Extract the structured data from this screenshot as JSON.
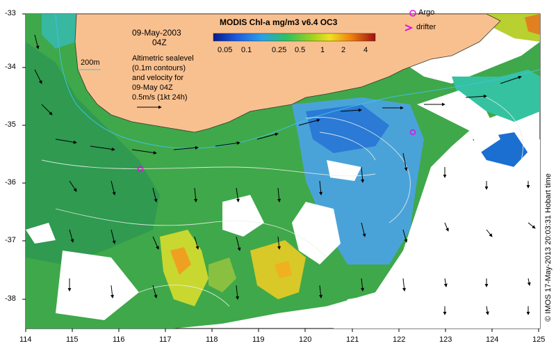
{
  "map": {
    "date": "09-May-2003",
    "time": "04Z",
    "isobath_label": "200m",
    "desc": [
      "Altimetric sealevel",
      "(0.1m contours)",
      "and velocity for",
      "09-May 04Z",
      "0.5m/s (1kt 24h)"
    ],
    "colorbar_title": "MODIS Chl-a mg/m3 v6.4 OC3",
    "colorbar_ticks": [
      "0.05",
      "0.1",
      "0.25",
      "0.5",
      "1",
      "2",
      "4"
    ],
    "legend": {
      "argo": "Argo",
      "drifter": "drifter"
    },
    "credit": "© IMOS 17-May-2013 20:03:31 Hobart time",
    "lon_ticks": [
      "114",
      "115",
      "116",
      "117",
      "118",
      "119",
      "120",
      "121",
      "122",
      "123",
      "124",
      "125"
    ],
    "lat_ticks": [
      "-33",
      "-34",
      "-35",
      "-36",
      "-37",
      "-38"
    ],
    "colors": {
      "land": "#f9c08f",
      "ocean_low": "#1f66d8",
      "ocean_mid": "#35b34a",
      "ocean_high": "#f0d020",
      "argo": "#e010e0"
    }
  }
}
